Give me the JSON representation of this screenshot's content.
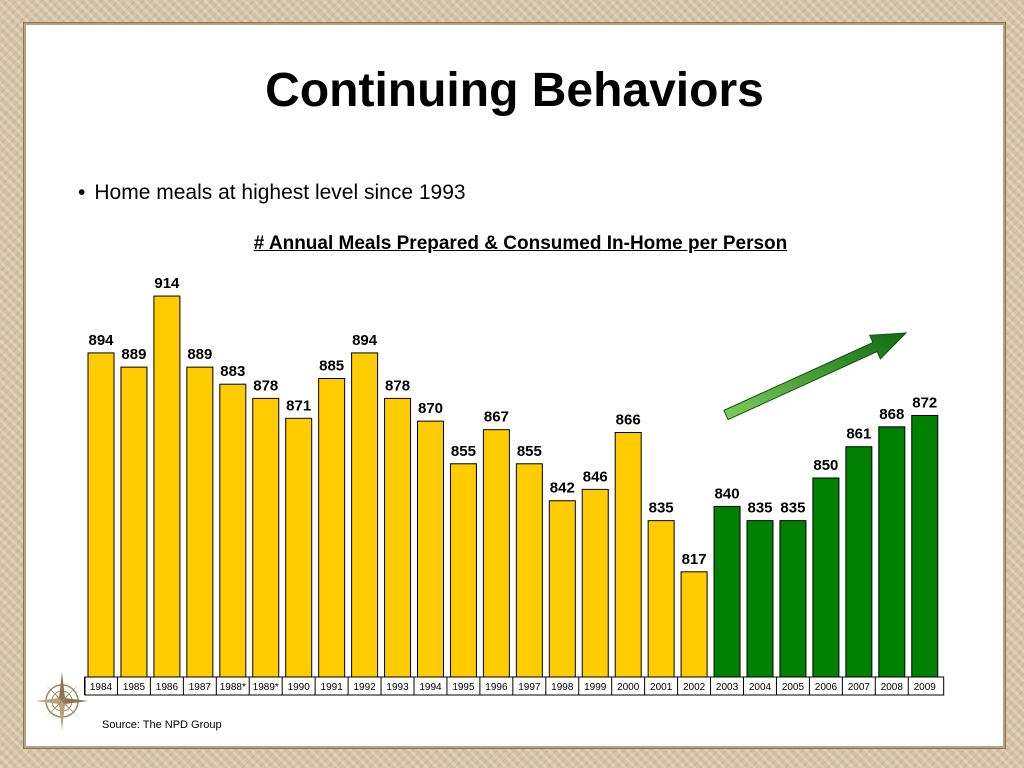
{
  "slide": {
    "title": "Continuing Behaviors",
    "bullet": "Home meals at highest level since 1993",
    "source": "Source:  The NPD Group"
  },
  "colors": {
    "highlight_bar": "#ffcc00",
    "trend_bar": "#008000",
    "arrow": "#2e9c2e"
  },
  "chart_data": {
    "type": "bar",
    "title": "# Annual Meals Prepared & Consumed In-Home per Person",
    "xlabel": "",
    "ylabel": "",
    "categories": [
      "1984",
      "1985",
      "1986",
      "1987",
      "1988*",
      "1989*",
      "1990",
      "1991",
      "1992",
      "1993",
      "1994",
      "1995",
      "1996",
      "1997",
      "1998",
      "1999",
      "2000",
      "2001",
      "2002",
      "2003",
      "2004",
      "2005",
      "2006",
      "2007",
      "2008",
      "2009"
    ],
    "values": [
      894,
      889,
      914,
      889,
      883,
      878,
      871,
      885,
      894,
      878,
      870,
      855,
      867,
      855,
      842,
      846,
      866,
      835,
      817,
      840,
      835,
      835,
      850,
      861,
      868,
      872
    ],
    "highlight_from": "2003",
    "ylim": [
      780,
      920
    ],
    "grid": false,
    "legend": "none",
    "annotations": [
      "upward trend arrow over 2003-2009"
    ]
  }
}
